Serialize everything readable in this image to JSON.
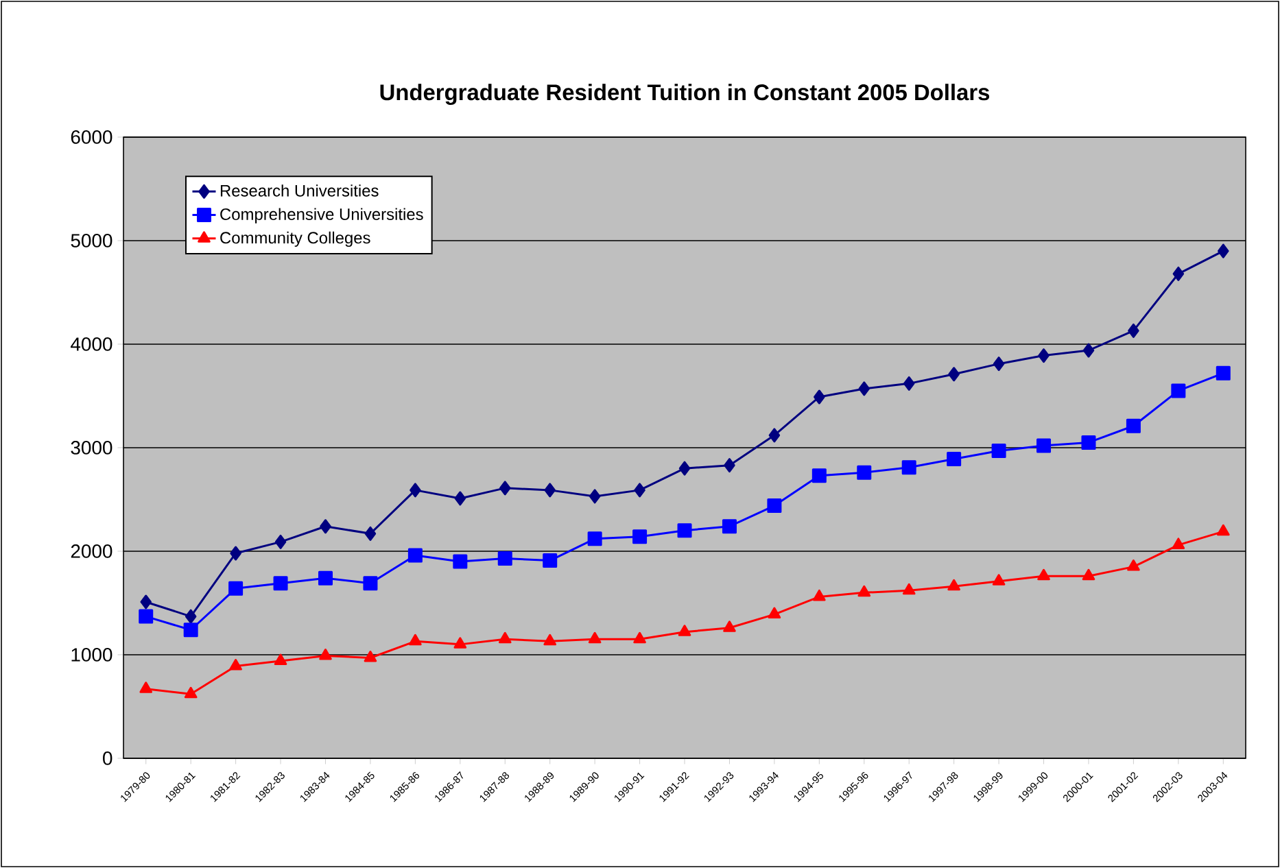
{
  "chart_data": {
    "type": "line",
    "title": "Undergraduate Resident Tuition in Constant 2005 Dollars",
    "categories": [
      "1979-80",
      "1980-81",
      "1981-82",
      "1982-83",
      "1983-84",
      "1984-85",
      "1985-86",
      "1986-87",
      "1987-88",
      "1988-89",
      "1989-90",
      "1990-91",
      "1991-92",
      "1992-93",
      "1993-94",
      "1994-95",
      "1995-96",
      "1996-97",
      "1997-98",
      "1998-99",
      "1999-00",
      "2000-01",
      "2001-02",
      "2002-03",
      "2003-04"
    ],
    "series": [
      {
        "name": "Research Universities",
        "color": "#000080",
        "marker": "diamond",
        "values": [
          1510,
          1370,
          1980,
          2090,
          2240,
          2170,
          2590,
          2510,
          2610,
          2590,
          2530,
          2590,
          2800,
          2830,
          3120,
          3490,
          3570,
          3620,
          3710,
          3810,
          3890,
          3940,
          4130,
          4680,
          4900
        ]
      },
      {
        "name": "Comprehensive Universities",
        "color": "#0000ff",
        "marker": "square",
        "values": [
          1370,
          1240,
          1640,
          1690,
          1740,
          1690,
          1960,
          1900,
          1930,
          1910,
          2120,
          2140,
          2200,
          2240,
          2440,
          2730,
          2760,
          2810,
          2890,
          2970,
          3020,
          3050,
          3210,
          3550,
          3720
        ]
      },
      {
        "name": "Community Colleges",
        "color": "#ff0000",
        "marker": "triangle",
        "values": [
          670,
          620,
          890,
          940,
          990,
          970,
          1130,
          1100,
          1150,
          1130,
          1150,
          1150,
          1220,
          1260,
          1390,
          1560,
          1600,
          1620,
          1660,
          1710,
          1760,
          1760,
          1850,
          2060,
          2190
        ]
      }
    ],
    "ylim": [
      0,
      6000
    ],
    "yticks": [
      0,
      1000,
      2000,
      3000,
      4000,
      5000,
      6000
    ],
    "grid": "y",
    "legend": "top left",
    "line_style": "solid"
  }
}
